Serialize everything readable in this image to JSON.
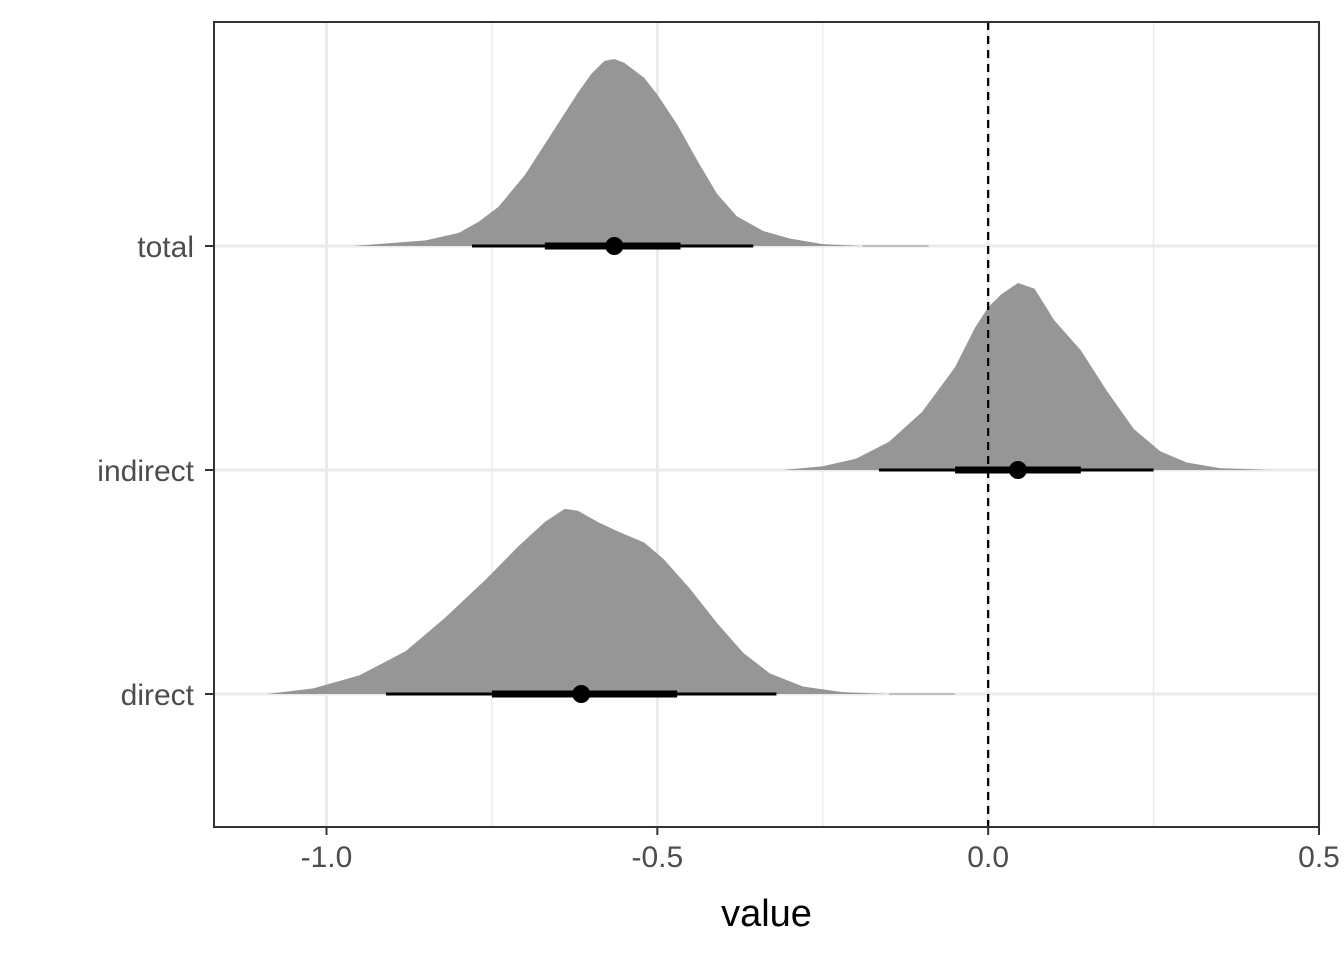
{
  "chart_data": {
    "type": "halfeye",
    "xlabel": "value",
    "ylabel": "",
    "xlim": [
      -1.17,
      0.5
    ],
    "x_ticks": [
      "-1.0",
      "-0.5",
      "0.0",
      "0.5"
    ],
    "x_tick_values": [
      -1.0,
      -0.5,
      0.0,
      0.5
    ],
    "x_minor_gridlines": [
      -0.75,
      -0.25,
      0.25
    ],
    "reference_line": {
      "x": 0.0,
      "style": "dashed"
    },
    "categories": [
      "total",
      "indirect",
      "direct"
    ],
    "series": [
      {
        "category": "total",
        "point": -0.565,
        "interval_66": [
          -0.67,
          -0.465
        ],
        "interval_95": [
          -0.78,
          -0.355
        ],
        "density": [
          [
            -0.96,
            0.0
          ],
          [
            -0.85,
            0.03
          ],
          [
            -0.8,
            0.07
          ],
          [
            -0.77,
            0.13
          ],
          [
            -0.74,
            0.21
          ],
          [
            -0.7,
            0.38
          ],
          [
            -0.66,
            0.6
          ],
          [
            -0.62,
            0.82
          ],
          [
            -0.6,
            0.92
          ],
          [
            -0.58,
            0.99
          ],
          [
            -0.565,
            1.0
          ],
          [
            -0.55,
            0.98
          ],
          [
            -0.52,
            0.9
          ],
          [
            -0.5,
            0.81
          ],
          [
            -0.47,
            0.65
          ],
          [
            -0.44,
            0.46
          ],
          [
            -0.41,
            0.28
          ],
          [
            -0.38,
            0.16
          ],
          [
            -0.34,
            0.08
          ],
          [
            -0.3,
            0.04
          ],
          [
            -0.25,
            0.01
          ],
          [
            -0.19,
            0.0
          ]
        ],
        "density_right_tail": -0.09
      },
      {
        "category": "indirect",
        "point": 0.045,
        "interval_66": [
          -0.05,
          0.14
        ],
        "interval_95": [
          -0.165,
          0.25
        ],
        "density": [
          [
            -0.31,
            0.0
          ],
          [
            -0.25,
            0.02
          ],
          [
            -0.2,
            0.06
          ],
          [
            -0.15,
            0.15
          ],
          [
            -0.1,
            0.31
          ],
          [
            -0.05,
            0.55
          ],
          [
            -0.02,
            0.76
          ],
          [
            0.0,
            0.87
          ],
          [
            0.02,
            0.94
          ],
          [
            0.045,
            1.0
          ],
          [
            0.07,
            0.97
          ],
          [
            0.1,
            0.8
          ],
          [
            0.14,
            0.64
          ],
          [
            0.18,
            0.42
          ],
          [
            0.22,
            0.22
          ],
          [
            0.26,
            0.1
          ],
          [
            0.3,
            0.04
          ],
          [
            0.35,
            0.01
          ],
          [
            0.43,
            0.0
          ]
        ]
      },
      {
        "category": "direct",
        "point": -0.615,
        "interval_66": [
          -0.75,
          -0.47
        ],
        "interval_95": [
          -0.91,
          -0.32
        ],
        "density": [
          [
            -1.09,
            0.0
          ],
          [
            -1.02,
            0.03
          ],
          [
            -0.95,
            0.1
          ],
          [
            -0.88,
            0.23
          ],
          [
            -0.82,
            0.41
          ],
          [
            -0.76,
            0.61
          ],
          [
            -0.71,
            0.79
          ],
          [
            -0.67,
            0.92
          ],
          [
            -0.64,
            0.99
          ],
          [
            -0.62,
            0.98
          ],
          [
            -0.59,
            0.92
          ],
          [
            -0.56,
            0.87
          ],
          [
            -0.52,
            0.81
          ],
          [
            -0.49,
            0.72
          ],
          [
            -0.45,
            0.56
          ],
          [
            -0.41,
            0.38
          ],
          [
            -0.37,
            0.22
          ],
          [
            -0.33,
            0.11
          ],
          [
            -0.28,
            0.04
          ],
          [
            -0.22,
            0.01
          ],
          [
            -0.15,
            0.0
          ]
        ],
        "density_right_tail": -0.05
      }
    ],
    "colors": {
      "density_fill": "#969696",
      "interval": "#000000",
      "grid": "#ebebeb",
      "panel_border": "#333333",
      "tick_text": "#4d4d4d"
    }
  }
}
